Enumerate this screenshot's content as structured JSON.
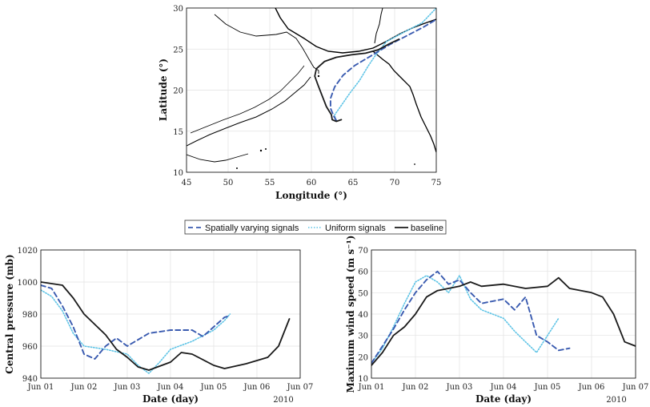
{
  "legend": {
    "items": [
      {
        "label": "Spatially varying signals",
        "color": "#3a5bb0",
        "style": "dashed"
      },
      {
        "label": "Uniform signals",
        "color": "#5fc4e6",
        "style": "dotted"
      },
      {
        "label": "baseline",
        "color": "#1a1a1a",
        "style": "solid"
      }
    ]
  },
  "chart_data": [
    {
      "type": "line",
      "panel": "track-map",
      "xlabel": "Longitude (°)",
      "ylabel": "Latitude (°)",
      "xlim": [
        45,
        75
      ],
      "ylim": [
        10,
        30
      ],
      "xticks": [
        "45",
        "50",
        "55",
        "60",
        "65",
        "70",
        "75"
      ],
      "yticks": [
        "10",
        "15",
        "20",
        "25",
        "30"
      ],
      "grid": true,
      "series": [
        {
          "name": "baseline",
          "points": [
            [
              63.6,
              16.4
            ],
            [
              63.0,
              16.2
            ],
            [
              62.5,
              16.4
            ],
            [
              62.4,
              17.0
            ],
            [
              61.8,
              18.0
            ],
            [
              61.3,
              19.3
            ],
            [
              60.8,
              20.6
            ],
            [
              60.4,
              21.7
            ],
            [
              60.6,
              22.6
            ],
            [
              61.6,
              23.5
            ],
            [
              63.0,
              24.0
            ],
            [
              64.8,
              24.3
            ],
            [
              66.5,
              24.5
            ],
            [
              68.0,
              24.9
            ],
            [
              69.3,
              25.6
            ],
            [
              70.5,
              26.2
            ]
          ]
        },
        {
          "name": "Spatially varying signals",
          "points": [
            [
              63.0,
              16.3
            ],
            [
              62.7,
              16.8
            ],
            [
              62.3,
              17.8
            ],
            [
              62.3,
              19.0
            ],
            [
              62.8,
              20.4
            ],
            [
              63.8,
              21.8
            ],
            [
              65.2,
              23.0
            ],
            [
              67.2,
              24.2
            ],
            [
              69.5,
              25.6
            ],
            [
              71.8,
              26.8
            ],
            [
              73.5,
              27.7
            ],
            [
              75.0,
              28.6
            ]
          ]
        },
        {
          "name": "Uniform signals",
          "points": [
            [
              62.9,
              16.3
            ],
            [
              62.8,
              17.0
            ],
            [
              63.5,
              18.0
            ],
            [
              64.6,
              19.6
            ],
            [
              65.8,
              21.2
            ],
            [
              66.8,
              22.9
            ],
            [
              67.6,
              24.1
            ],
            [
              69.0,
              25.9
            ],
            [
              71.2,
              27.1
            ],
            [
              73.3,
              28.2
            ],
            [
              75.0,
              30.0
            ]
          ]
        }
      ]
    },
    {
      "type": "line",
      "panel": "central-pressure",
      "xlabel": "Date (day)",
      "ylabel": "Central pressure (mb)",
      "year_label": "2010",
      "xtick_labels": [
        "Jun 01",
        "Jun 02",
        "Jun 03",
        "Jun 04",
        "Jun 05",
        "Jun 06",
        "Jun 07"
      ],
      "xlim": [
        "2010-06-01",
        "2010-06-07"
      ],
      "ylim": [
        940,
        1020
      ],
      "yticks": [
        "940",
        "960",
        "980",
        "1000",
        "1020"
      ],
      "grid": true,
      "series": [
        {
          "name": "baseline",
          "points": [
            [
              "2010-06-01T00:00",
              1000
            ],
            [
              "2010-06-01T12:00",
              998
            ],
            [
              "2010-06-01T18:00",
              990
            ],
            [
              "2010-06-02T00:00",
              980
            ],
            [
              "2010-06-02T12:00",
              967
            ],
            [
              "2010-06-02T18:00",
              958
            ],
            [
              "2010-06-03T00:00",
              953
            ],
            [
              "2010-06-03T06:00",
              947
            ],
            [
              "2010-06-03T12:00",
              945
            ],
            [
              "2010-06-04T00:00",
              950
            ],
            [
              "2010-06-04T06:00",
              956
            ],
            [
              "2010-06-04T12:00",
              955
            ],
            [
              "2010-06-05T00:00",
              948
            ],
            [
              "2010-06-05T06:00",
              946
            ],
            [
              "2010-06-05T18:00",
              949
            ],
            [
              "2010-06-06T06:00",
              953
            ],
            [
              "2010-06-06T12:00",
              960
            ],
            [
              "2010-06-06T18:00",
              977
            ]
          ]
        },
        {
          "name": "Spatially varying signals",
          "points": [
            [
              "2010-06-01T00:00",
              998
            ],
            [
              "2010-06-01T06:00",
              996
            ],
            [
              "2010-06-01T12:00",
              985
            ],
            [
              "2010-06-01T18:00",
              972
            ],
            [
              "2010-06-02T00:00",
              955
            ],
            [
              "2010-06-02T06:00",
              952
            ],
            [
              "2010-06-02T12:00",
              960
            ],
            [
              "2010-06-02T18:00",
              965
            ],
            [
              "2010-06-03T00:00",
              960
            ],
            [
              "2010-06-03T06:00",
              964
            ],
            [
              "2010-06-03T12:00",
              968
            ],
            [
              "2010-06-04T00:00",
              970
            ],
            [
              "2010-06-04T12:00",
              970
            ],
            [
              "2010-06-04T18:00",
              966
            ],
            [
              "2010-06-05T00:00",
              972
            ],
            [
              "2010-06-05T06:00",
              978
            ],
            [
              "2010-06-05T09:00",
              979
            ]
          ]
        },
        {
          "name": "Uniform signals",
          "points": [
            [
              "2010-06-01T00:00",
              995
            ],
            [
              "2010-06-01T06:00",
              991
            ],
            [
              "2010-06-01T12:00",
              982
            ],
            [
              "2010-06-01T18:00",
              968
            ],
            [
              "2010-06-02T00:00",
              960
            ],
            [
              "2010-06-02T12:00",
              958
            ],
            [
              "2010-06-03T00:00",
              955
            ],
            [
              "2010-06-03T06:00",
              948
            ],
            [
              "2010-06-03T12:00",
              943
            ],
            [
              "2010-06-03T18:00",
              950
            ],
            [
              "2010-06-04T00:00",
              958
            ],
            [
              "2010-06-04T12:00",
              963
            ],
            [
              "2010-06-05T00:00",
              970
            ],
            [
              "2010-06-05T06:00",
              976
            ],
            [
              "2010-06-05T09:00",
              980
            ]
          ]
        }
      ]
    },
    {
      "type": "line",
      "panel": "max-wind-speed",
      "xlabel": "Date (day)",
      "ylabel": "Maximum wind speed (m s⁻¹)",
      "year_label": "2010",
      "xtick_labels": [
        "Jun 01",
        "Jun 02",
        "Jun 03",
        "Jun 04",
        "Jun 05",
        "Jun 06",
        "Jun 07"
      ],
      "xlim": [
        "2010-06-01",
        "2010-06-07"
      ],
      "ylim": [
        10,
        70
      ],
      "yticks": [
        "10",
        "20",
        "30",
        "40",
        "50",
        "60",
        "70"
      ],
      "grid": true,
      "series": [
        {
          "name": "baseline",
          "points": [
            [
              "2010-06-01T00:00",
              16
            ],
            [
              "2010-06-01T06:00",
              22
            ],
            [
              "2010-06-01T12:00",
              30
            ],
            [
              "2010-06-01T18:00",
              34
            ],
            [
              "2010-06-02T00:00",
              40
            ],
            [
              "2010-06-02T06:00",
              48
            ],
            [
              "2010-06-02T12:00",
              51
            ],
            [
              "2010-06-03T00:00",
              53
            ],
            [
              "2010-06-03T06:00",
              55
            ],
            [
              "2010-06-03T12:00",
              53
            ],
            [
              "2010-06-04T00:00",
              54
            ],
            [
              "2010-06-04T12:00",
              52
            ],
            [
              "2010-06-05T00:00",
              53
            ],
            [
              "2010-06-05T06:00",
              57
            ],
            [
              "2010-06-05T12:00",
              52
            ],
            [
              "2010-06-06T00:00",
              50
            ],
            [
              "2010-06-06T06:00",
              48
            ],
            [
              "2010-06-06T12:00",
              40
            ],
            [
              "2010-06-06T18:00",
              27
            ],
            [
              "2010-06-07T00:00",
              25
            ]
          ]
        },
        {
          "name": "Spatially varying signals",
          "points": [
            [
              "2010-06-01T00:00",
              17
            ],
            [
              "2010-06-01T06:00",
              25
            ],
            [
              "2010-06-01T12:00",
              33
            ],
            [
              "2010-06-01T18:00",
              42
            ],
            [
              "2010-06-02T00:00",
              50
            ],
            [
              "2010-06-02T06:00",
              56
            ],
            [
              "2010-06-02T12:00",
              60
            ],
            [
              "2010-06-02T18:00",
              54
            ],
            [
              "2010-06-03T00:00",
              56
            ],
            [
              "2010-06-03T06:00",
              50
            ],
            [
              "2010-06-03T12:00",
              45
            ],
            [
              "2010-06-04T00:00",
              47
            ],
            [
              "2010-06-04T06:00",
              42
            ],
            [
              "2010-06-04T12:00",
              48
            ],
            [
              "2010-06-04T18:00",
              30
            ],
            [
              "2010-06-05T00:00",
              27
            ],
            [
              "2010-06-05T06:00",
              23
            ],
            [
              "2010-06-05T12:00",
              24
            ]
          ]
        },
        {
          "name": "Uniform signals",
          "points": [
            [
              "2010-06-01T00:00",
              17
            ],
            [
              "2010-06-01T06:00",
              24
            ],
            [
              "2010-06-01T12:00",
              34
            ],
            [
              "2010-06-01T18:00",
              45
            ],
            [
              "2010-06-02T00:00",
              55
            ],
            [
              "2010-06-02T06:00",
              58
            ],
            [
              "2010-06-02T12:00",
              55
            ],
            [
              "2010-06-02T18:00",
              50
            ],
            [
              "2010-06-03T00:00",
              58
            ],
            [
              "2010-06-03T06:00",
              47
            ],
            [
              "2010-06-03T12:00",
              42
            ],
            [
              "2010-06-04T00:00",
              38
            ],
            [
              "2010-06-04T06:00",
              32
            ],
            [
              "2010-06-04T12:00",
              27
            ],
            [
              "2010-06-04T18:00",
              22
            ],
            [
              "2010-06-05T00:00",
              30
            ],
            [
              "2010-06-05T06:00",
              38
            ]
          ]
        }
      ]
    }
  ]
}
